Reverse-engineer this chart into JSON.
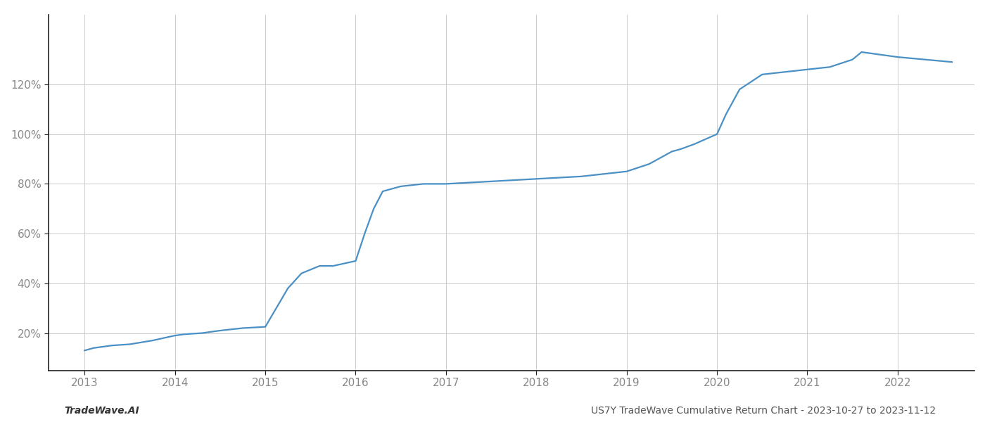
{
  "x": [
    2013.0,
    2013.1,
    2013.3,
    2013.5,
    2013.75,
    2014.0,
    2014.1,
    2014.3,
    2014.5,
    2014.75,
    2015.0,
    2015.25,
    2015.4,
    2015.6,
    2015.75,
    2016.0,
    2016.1,
    2016.2,
    2016.3,
    2016.5,
    2016.75,
    2017.0,
    2017.25,
    2017.5,
    2017.75,
    2018.0,
    2018.25,
    2018.5,
    2018.75,
    2019.0,
    2019.25,
    2019.4,
    2019.5,
    2019.6,
    2019.75,
    2020.0,
    2020.1,
    2020.25,
    2020.5,
    2020.75,
    2021.0,
    2021.25,
    2021.5,
    2021.6,
    2022.0,
    2022.3,
    2022.6
  ],
  "y": [
    13,
    14,
    15,
    15.5,
    17,
    19,
    19.5,
    20,
    21,
    22,
    22.5,
    38,
    44,
    47,
    47,
    49,
    60,
    70,
    77,
    79,
    80,
    80,
    80.5,
    81,
    81.5,
    82,
    82.5,
    83,
    84,
    85,
    88,
    91,
    93,
    94,
    96,
    100,
    108,
    118,
    124,
    125,
    126,
    127,
    130,
    133,
    131,
    130,
    129
  ],
  "line_color": "#4a90c4",
  "line_width": 1.6,
  "footer_left": "TradeWave.AI",
  "footer_right": "US7Y TradeWave Cumulative Return Chart - 2023-10-27 to 2023-11-12",
  "xticks": [
    2013,
    2014,
    2015,
    2016,
    2017,
    2018,
    2019,
    2020,
    2021,
    2022
  ],
  "yticks": [
    20,
    40,
    60,
    80,
    100,
    120
  ],
  "ytick_labels": [
    "20%",
    "40%",
    "60%",
    "80%",
    "100%",
    "120%"
  ],
  "xlim": [
    2012.6,
    2022.85
  ],
  "ylim": [
    5,
    148
  ],
  "background_color": "#ffffff",
  "grid_color": "#cccccc",
  "spine_color": "#222222",
  "footer_fontsize": 10,
  "tick_fontsize": 11,
  "tick_color": "#888888"
}
